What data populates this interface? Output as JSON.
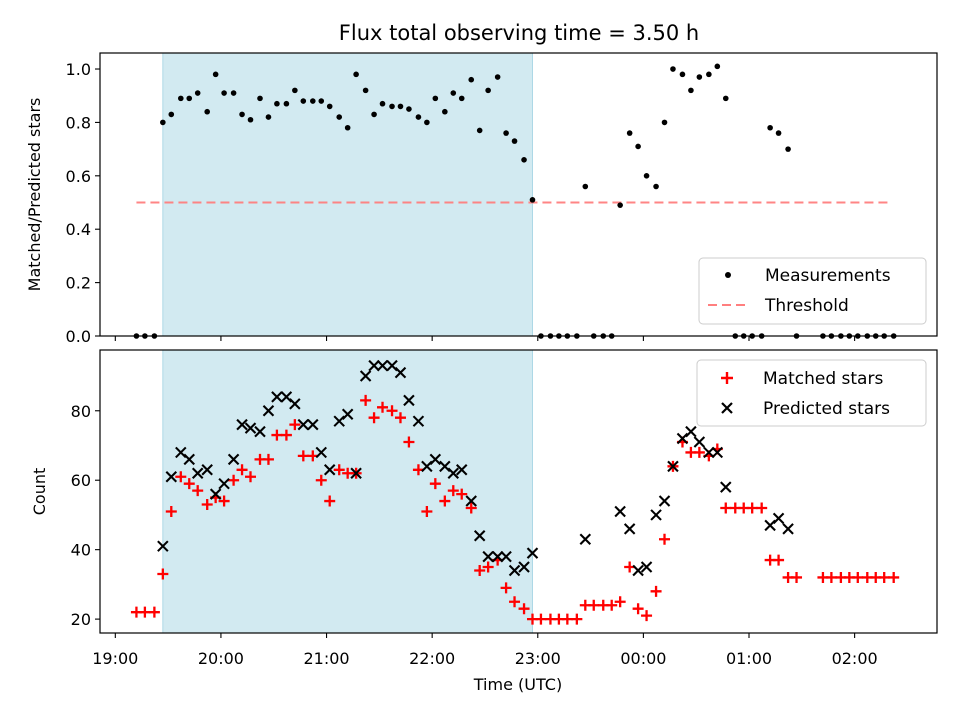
{
  "chart_data": [
    {
      "type": "scatter",
      "title": "Flux total observing time = 3.50 h",
      "ylabel": "Matched/Predicted stars",
      "ylim": [
        0,
        1.06
      ],
      "yticks": [
        0.0,
        0.2,
        0.4,
        0.6,
        0.8,
        1.0
      ],
      "ytick_labels": [
        "0.0",
        "0.2",
        "0.4",
        "0.6",
        "0.8",
        "1.0"
      ],
      "xlim_hours": [
        18.855,
        26.78
      ],
      "shaded_span_hours": [
        19.45,
        22.95
      ],
      "shade_color": "#add8e6",
      "threshold": {
        "name": "Threshold",
        "y": 0.5,
        "x_from": 19.2,
        "x_to": 26.32,
        "color": "#ff7f7f"
      },
      "legend": {
        "position": "lower right",
        "entries": [
          "Measurements",
          "Threshold"
        ]
      },
      "series": [
        {
          "name": "Measurements",
          "color": "#000000",
          "marker": "dot",
          "points": [
            [
              19.2,
              0
            ],
            [
              19.28,
              0
            ],
            [
              19.37,
              0
            ],
            [
              19.45,
              0.8
            ],
            [
              19.53,
              0.83
            ],
            [
              19.62,
              0.89
            ],
            [
              19.7,
              0.89
            ],
            [
              19.78,
              0.91
            ],
            [
              19.87,
              0.84
            ],
            [
              19.95,
              0.98
            ],
            [
              20.03,
              0.91
            ],
            [
              20.12,
              0.91
            ],
            [
              20.2,
              0.83
            ],
            [
              20.28,
              0.81
            ],
            [
              20.37,
              0.89
            ],
            [
              20.45,
              0.82
            ],
            [
              20.53,
              0.87
            ],
            [
              20.62,
              0.87
            ],
            [
              20.7,
              0.92
            ],
            [
              20.78,
              0.88
            ],
            [
              20.87,
              0.88
            ],
            [
              20.95,
              0.88
            ],
            [
              21.03,
              0.86
            ],
            [
              21.12,
              0.82
            ],
            [
              21.2,
              0.78
            ],
            [
              21.28,
              0.98
            ],
            [
              21.37,
              0.92
            ],
            [
              21.45,
              0.83
            ],
            [
              21.53,
              0.87
            ],
            [
              21.62,
              0.86
            ],
            [
              21.7,
              0.86
            ],
            [
              21.78,
              0.85
            ],
            [
              21.87,
              0.82
            ],
            [
              21.95,
              0.8
            ],
            [
              22.03,
              0.89
            ],
            [
              22.12,
              0.84
            ],
            [
              22.2,
              0.91
            ],
            [
              22.28,
              0.89
            ],
            [
              22.37,
              0.96
            ],
            [
              22.45,
              0.77
            ],
            [
              22.53,
              0.92
            ],
            [
              22.62,
              0.97
            ],
            [
              22.7,
              0.76
            ],
            [
              22.78,
              0.73
            ],
            [
              22.87,
              0.66
            ],
            [
              22.95,
              0.51
            ],
            [
              23.03,
              0
            ],
            [
              23.12,
              0
            ],
            [
              23.2,
              0
            ],
            [
              23.28,
              0
            ],
            [
              23.37,
              0
            ],
            [
              23.45,
              0.56
            ],
            [
              23.53,
              0
            ],
            [
              23.62,
              0
            ],
            [
              23.7,
              0
            ],
            [
              23.78,
              0.49
            ],
            [
              23.87,
              0.76
            ],
            [
              23.95,
              0.71
            ],
            [
              24.03,
              0.6
            ],
            [
              24.12,
              0.56
            ],
            [
              24.2,
              0.8
            ],
            [
              24.28,
              1.0
            ],
            [
              24.37,
              0.98
            ],
            [
              24.45,
              0.92
            ],
            [
              24.53,
              0.97
            ],
            [
              24.62,
              0.98
            ],
            [
              24.7,
              1.01
            ],
            [
              24.78,
              0.89
            ],
            [
              24.87,
              0
            ],
            [
              24.95,
              0
            ],
            [
              25.03,
              0
            ],
            [
              25.12,
              0
            ],
            [
              25.2,
              0.78
            ],
            [
              25.28,
              0.76
            ],
            [
              25.37,
              0.7
            ],
            [
              25.45,
              0
            ],
            [
              25.7,
              0
            ],
            [
              25.78,
              0
            ],
            [
              25.87,
              0
            ],
            [
              25.95,
              0
            ],
            [
              26.03,
              0
            ],
            [
              26.12,
              0
            ],
            [
              26.2,
              0
            ],
            [
              26.28,
              0
            ],
            [
              26.37,
              0
            ]
          ]
        }
      ]
    },
    {
      "type": "scatter",
      "xlabel": "Time (UTC)",
      "ylabel": "Count",
      "ylim": [
        16,
        97.5
      ],
      "yticks": [
        20,
        40,
        60,
        80
      ],
      "ytick_labels": [
        "20",
        "40",
        "60",
        "80"
      ],
      "xlim_hours": [
        18.855,
        26.78
      ],
      "xticks_hours": [
        19,
        20,
        21,
        22,
        23,
        24,
        25,
        26
      ],
      "xtick_labels": [
        "19:00",
        "20:00",
        "21:00",
        "22:00",
        "23:00",
        "00:00",
        "01:00",
        "02:00"
      ],
      "shaded_span_hours": [
        19.45,
        22.95
      ],
      "shade_color": "#add8e6",
      "legend": {
        "position": "upper right",
        "entries": [
          "Matched stars",
          "Predicted stars"
        ]
      },
      "series": [
        {
          "name": "Matched stars",
          "color": "#ff0000",
          "marker": "plus",
          "points": [
            [
              19.2,
              22
            ],
            [
              19.28,
              22
            ],
            [
              19.37,
              22
            ],
            [
              19.45,
              33
            ],
            [
              19.53,
              51
            ],
            [
              19.62,
              61
            ],
            [
              19.7,
              59
            ],
            [
              19.78,
              57
            ],
            [
              19.87,
              53
            ],
            [
              19.95,
              55
            ],
            [
              20.03,
              54
            ],
            [
              20.12,
              60
            ],
            [
              20.2,
              63
            ],
            [
              20.28,
              61
            ],
            [
              20.37,
              66
            ],
            [
              20.45,
              66
            ],
            [
              20.53,
              73
            ],
            [
              20.62,
              73
            ],
            [
              20.7,
              76
            ],
            [
              20.78,
              67
            ],
            [
              20.87,
              67
            ],
            [
              20.95,
              60
            ],
            [
              21.03,
              54
            ],
            [
              21.12,
              63
            ],
            [
              21.2,
              62
            ],
            [
              21.28,
              62
            ],
            [
              21.37,
              83
            ],
            [
              21.45,
              78
            ],
            [
              21.53,
              81
            ],
            [
              21.62,
              80
            ],
            [
              21.7,
              78
            ],
            [
              21.78,
              71
            ],
            [
              21.87,
              63
            ],
            [
              21.95,
              51
            ],
            [
              22.03,
              59
            ],
            [
              22.12,
              54
            ],
            [
              22.2,
              57
            ],
            [
              22.28,
              56
            ],
            [
              22.37,
              52
            ],
            [
              22.45,
              34
            ],
            [
              22.53,
              35
            ],
            [
              22.62,
              37
            ],
            [
              22.7,
              29
            ],
            [
              22.78,
              25
            ],
            [
              22.87,
              23
            ],
            [
              22.95,
              20
            ],
            [
              23.03,
              20
            ],
            [
              23.12,
              20
            ],
            [
              23.2,
              20
            ],
            [
              23.28,
              20
            ],
            [
              23.37,
              20
            ],
            [
              23.45,
              24
            ],
            [
              23.53,
              24
            ],
            [
              23.62,
              24
            ],
            [
              23.7,
              24
            ],
            [
              23.78,
              25
            ],
            [
              23.87,
              35
            ],
            [
              23.95,
              23
            ],
            [
              24.03,
              21
            ],
            [
              24.12,
              28
            ],
            [
              24.2,
              43
            ],
            [
              24.28,
              64
            ],
            [
              24.37,
              71
            ],
            [
              24.45,
              68
            ],
            [
              24.53,
              68
            ],
            [
              24.62,
              67
            ],
            [
              24.7,
              69
            ],
            [
              24.78,
              52
            ],
            [
              24.87,
              52
            ],
            [
              24.95,
              52
            ],
            [
              25.03,
              52
            ],
            [
              25.12,
              52
            ],
            [
              25.2,
              37
            ],
            [
              25.28,
              37
            ],
            [
              25.37,
              32
            ],
            [
              25.45,
              32
            ],
            [
              25.7,
              32
            ],
            [
              25.78,
              32
            ],
            [
              25.87,
              32
            ],
            [
              25.95,
              32
            ],
            [
              26.03,
              32
            ],
            [
              26.12,
              32
            ],
            [
              26.2,
              32
            ],
            [
              26.28,
              32
            ],
            [
              26.37,
              32
            ]
          ]
        },
        {
          "name": "Predicted stars",
          "color": "#000000",
          "marker": "x",
          "points": [
            [
              19.45,
              41
            ],
            [
              19.53,
              61
            ],
            [
              19.62,
              68
            ],
            [
              19.7,
              66
            ],
            [
              19.78,
              62
            ],
            [
              19.87,
              63
            ],
            [
              19.95,
              56
            ],
            [
              20.03,
              59
            ],
            [
              20.12,
              66
            ],
            [
              20.2,
              76
            ],
            [
              20.28,
              75
            ],
            [
              20.37,
              74
            ],
            [
              20.45,
              80
            ],
            [
              20.53,
              84
            ],
            [
              20.62,
              84
            ],
            [
              20.7,
              82
            ],
            [
              20.78,
              76
            ],
            [
              20.87,
              76
            ],
            [
              20.95,
              68
            ],
            [
              21.03,
              63
            ],
            [
              21.12,
              77
            ],
            [
              21.2,
              79
            ],
            [
              21.28,
              62
            ],
            [
              21.37,
              90
            ],
            [
              21.45,
              93
            ],
            [
              21.53,
              93
            ],
            [
              21.62,
              93
            ],
            [
              21.7,
              91
            ],
            [
              21.78,
              83
            ],
            [
              21.87,
              77
            ],
            [
              21.95,
              64
            ],
            [
              22.03,
              66
            ],
            [
              22.12,
              64
            ],
            [
              22.2,
              62
            ],
            [
              22.28,
              63
            ],
            [
              22.37,
              54
            ],
            [
              22.45,
              44
            ],
            [
              22.53,
              38
            ],
            [
              22.62,
              38
            ],
            [
              22.7,
              38
            ],
            [
              22.78,
              34
            ],
            [
              22.87,
              35
            ],
            [
              22.95,
              39
            ],
            [
              23.45,
              43
            ],
            [
              23.78,
              51
            ],
            [
              23.87,
              46
            ],
            [
              23.95,
              34
            ],
            [
              24.03,
              35
            ],
            [
              24.12,
              50
            ],
            [
              24.2,
              54
            ],
            [
              24.28,
              64
            ],
            [
              24.37,
              72
            ],
            [
              24.45,
              74
            ],
            [
              24.53,
              71
            ],
            [
              24.62,
              68
            ],
            [
              24.7,
              68
            ],
            [
              24.78,
              58
            ],
            [
              25.2,
              47
            ],
            [
              25.28,
              49
            ],
            [
              25.37,
              46
            ]
          ]
        }
      ]
    }
  ]
}
